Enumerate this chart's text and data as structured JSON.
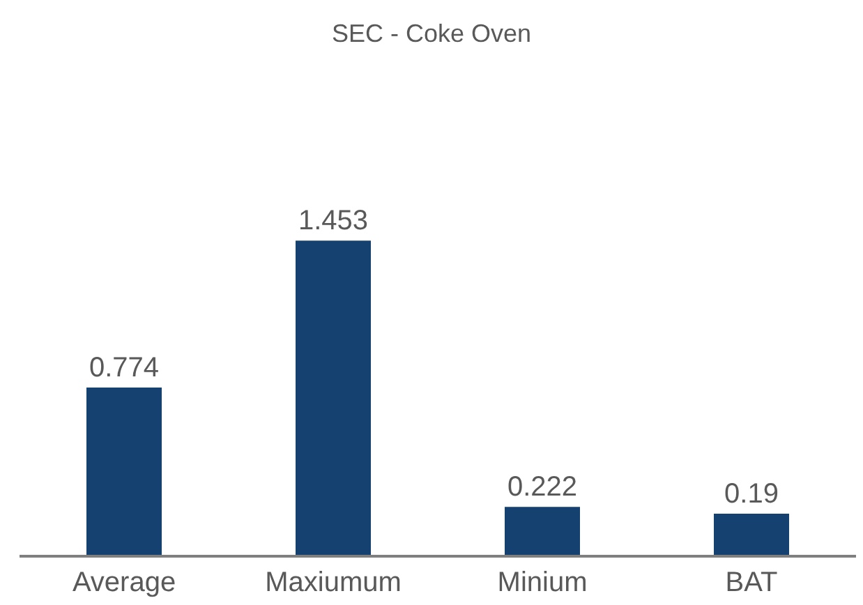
{
  "chart_data": {
    "type": "bar",
    "title": "SEC - Coke Oven",
    "categories": [
      "Average",
      "Maxiumum",
      "Minium",
      "BAT"
    ],
    "values": [
      0.774,
      1.453,
      0.222,
      0.19
    ],
    "color": "#14416f",
    "data_labels": true
  }
}
